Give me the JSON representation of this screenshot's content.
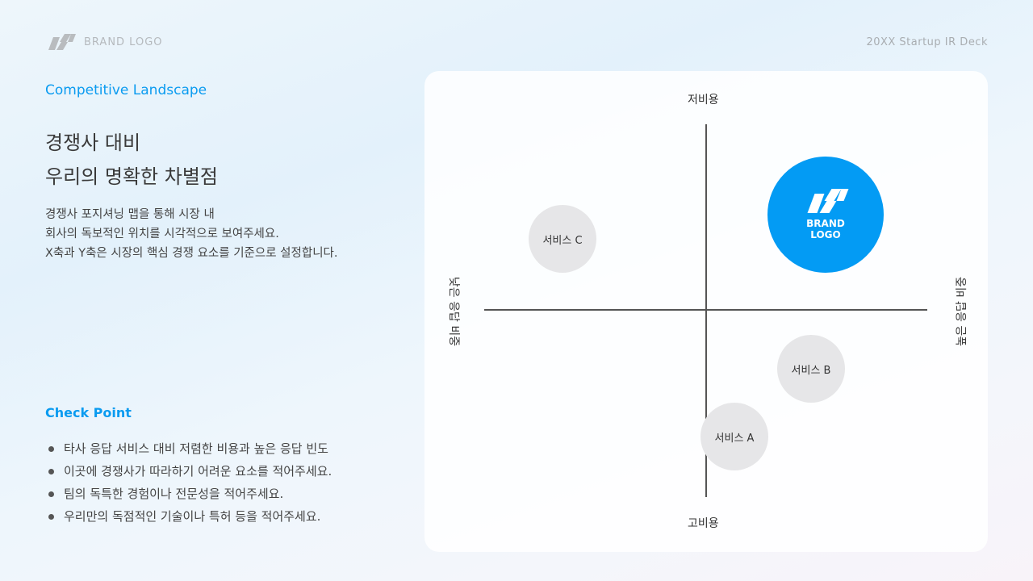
{
  "header": {
    "brand_logo": "BRAND LOGO",
    "deck_title": "20XX Startup IR Deck"
  },
  "left": {
    "section": "Competitive Landscape",
    "title_lines": [
      "경쟁사 대비",
      "우리의 명확한 차별점"
    ],
    "desc_lines": [
      "경쟁사 포지셔닝 맵을 통해 시장 내",
      "회사의 독보적인 위치를 시각적으로 보여주세요.",
      "X축과 Y축은 시장의 핵심 경쟁 요소를 기준으로 설정합니다."
    ],
    "checkpoint_title": "Check Point",
    "checkpoints": [
      "타사 응답 서비스 대비 저렴한 비용과 높은 응답 빈도",
      "이곳에 경쟁사가 따라하기 어려운 요소를 적어주세요.",
      "팀의 독특한 경험이나 전문성을 적어주세요.",
      "우리만의 독점적인 기술이나 특허 등을 적어주세요."
    ]
  },
  "map": {
    "top": "저비용",
    "bottom": "고비용",
    "left": "낮은 응답 비중",
    "right": "높은 응답 비중",
    "brand_lines": [
      "BRAND",
      "LOGO"
    ],
    "services": {
      "a": "서비스 A",
      "b": "서비스 B",
      "c": "서비스 C"
    },
    "brand_color": "#039bf4"
  }
}
